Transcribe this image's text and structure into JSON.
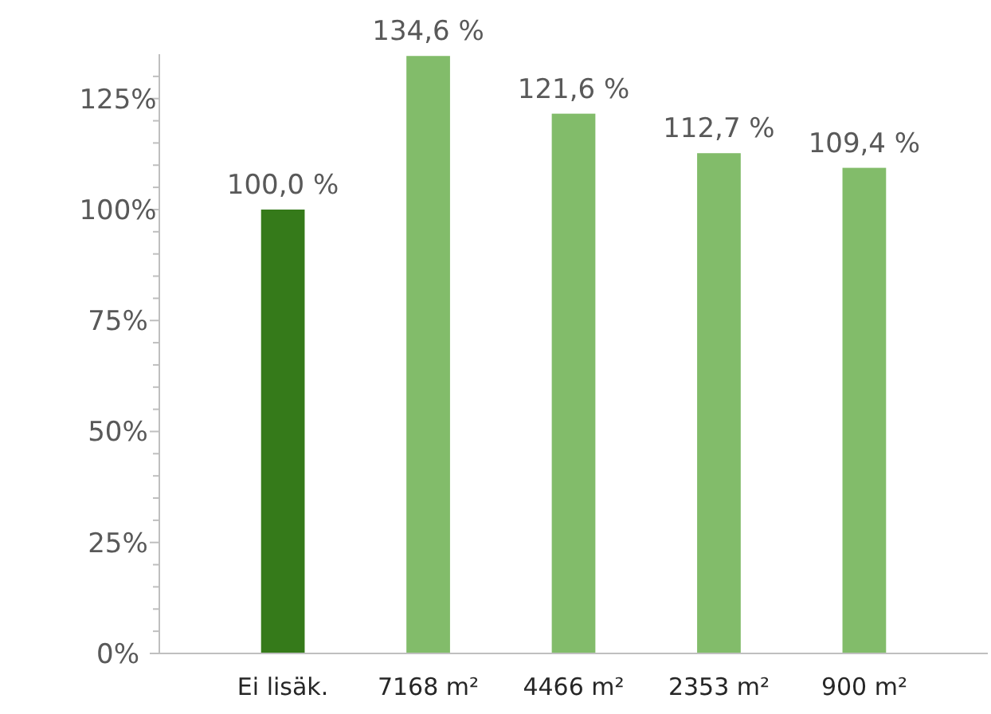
{
  "chart_data": {
    "type": "bar",
    "categories": [
      "Ei lisäk.",
      "7168 m²",
      "4466 m²",
      "2353 m²",
      "900 m²"
    ],
    "values": [
      100.0,
      134.6,
      121.6,
      112.7,
      109.4
    ],
    "colors": [
      "#357a1a",
      "#82bc6a",
      "#82bc6a",
      "#82bc6a",
      "#82bc6a"
    ],
    "value_labels": [
      "100,0 %",
      "134,6 %",
      "121,6 %",
      "112,7 %",
      "109,4 %"
    ],
    "ylim": [
      0,
      135
    ],
    "yticks": [
      {
        "value": 0,
        "label": "0%"
      },
      {
        "value": 5,
        "label": null
      },
      {
        "value": 10,
        "label": null
      },
      {
        "value": 15,
        "label": null
      },
      {
        "value": 20,
        "label": null
      },
      {
        "value": 25,
        "label": "25%"
      },
      {
        "value": 30,
        "label": null
      },
      {
        "value": 35,
        "label": null
      },
      {
        "value": 40,
        "label": null
      },
      {
        "value": 45,
        "label": null
      },
      {
        "value": 50,
        "label": "50%"
      },
      {
        "value": 55,
        "label": null
      },
      {
        "value": 60,
        "label": null
      },
      {
        "value": 65,
        "label": null
      },
      {
        "value": 70,
        "label": null
      },
      {
        "value": 75,
        "label": "75%"
      },
      {
        "value": 80,
        "label": null
      },
      {
        "value": 85,
        "label": null
      },
      {
        "value": 90,
        "label": null
      },
      {
        "value": 95,
        "label": null
      },
      {
        "value": 100,
        "label": "100%"
      },
      {
        "value": 105,
        "label": null
      },
      {
        "value": 110,
        "label": null
      },
      {
        "value": 115,
        "label": null
      },
      {
        "value": 120,
        "label": null
      },
      {
        "value": 125,
        "label": "125%"
      },
      {
        "value": 130,
        "label": null
      }
    ],
    "grid": false
  }
}
